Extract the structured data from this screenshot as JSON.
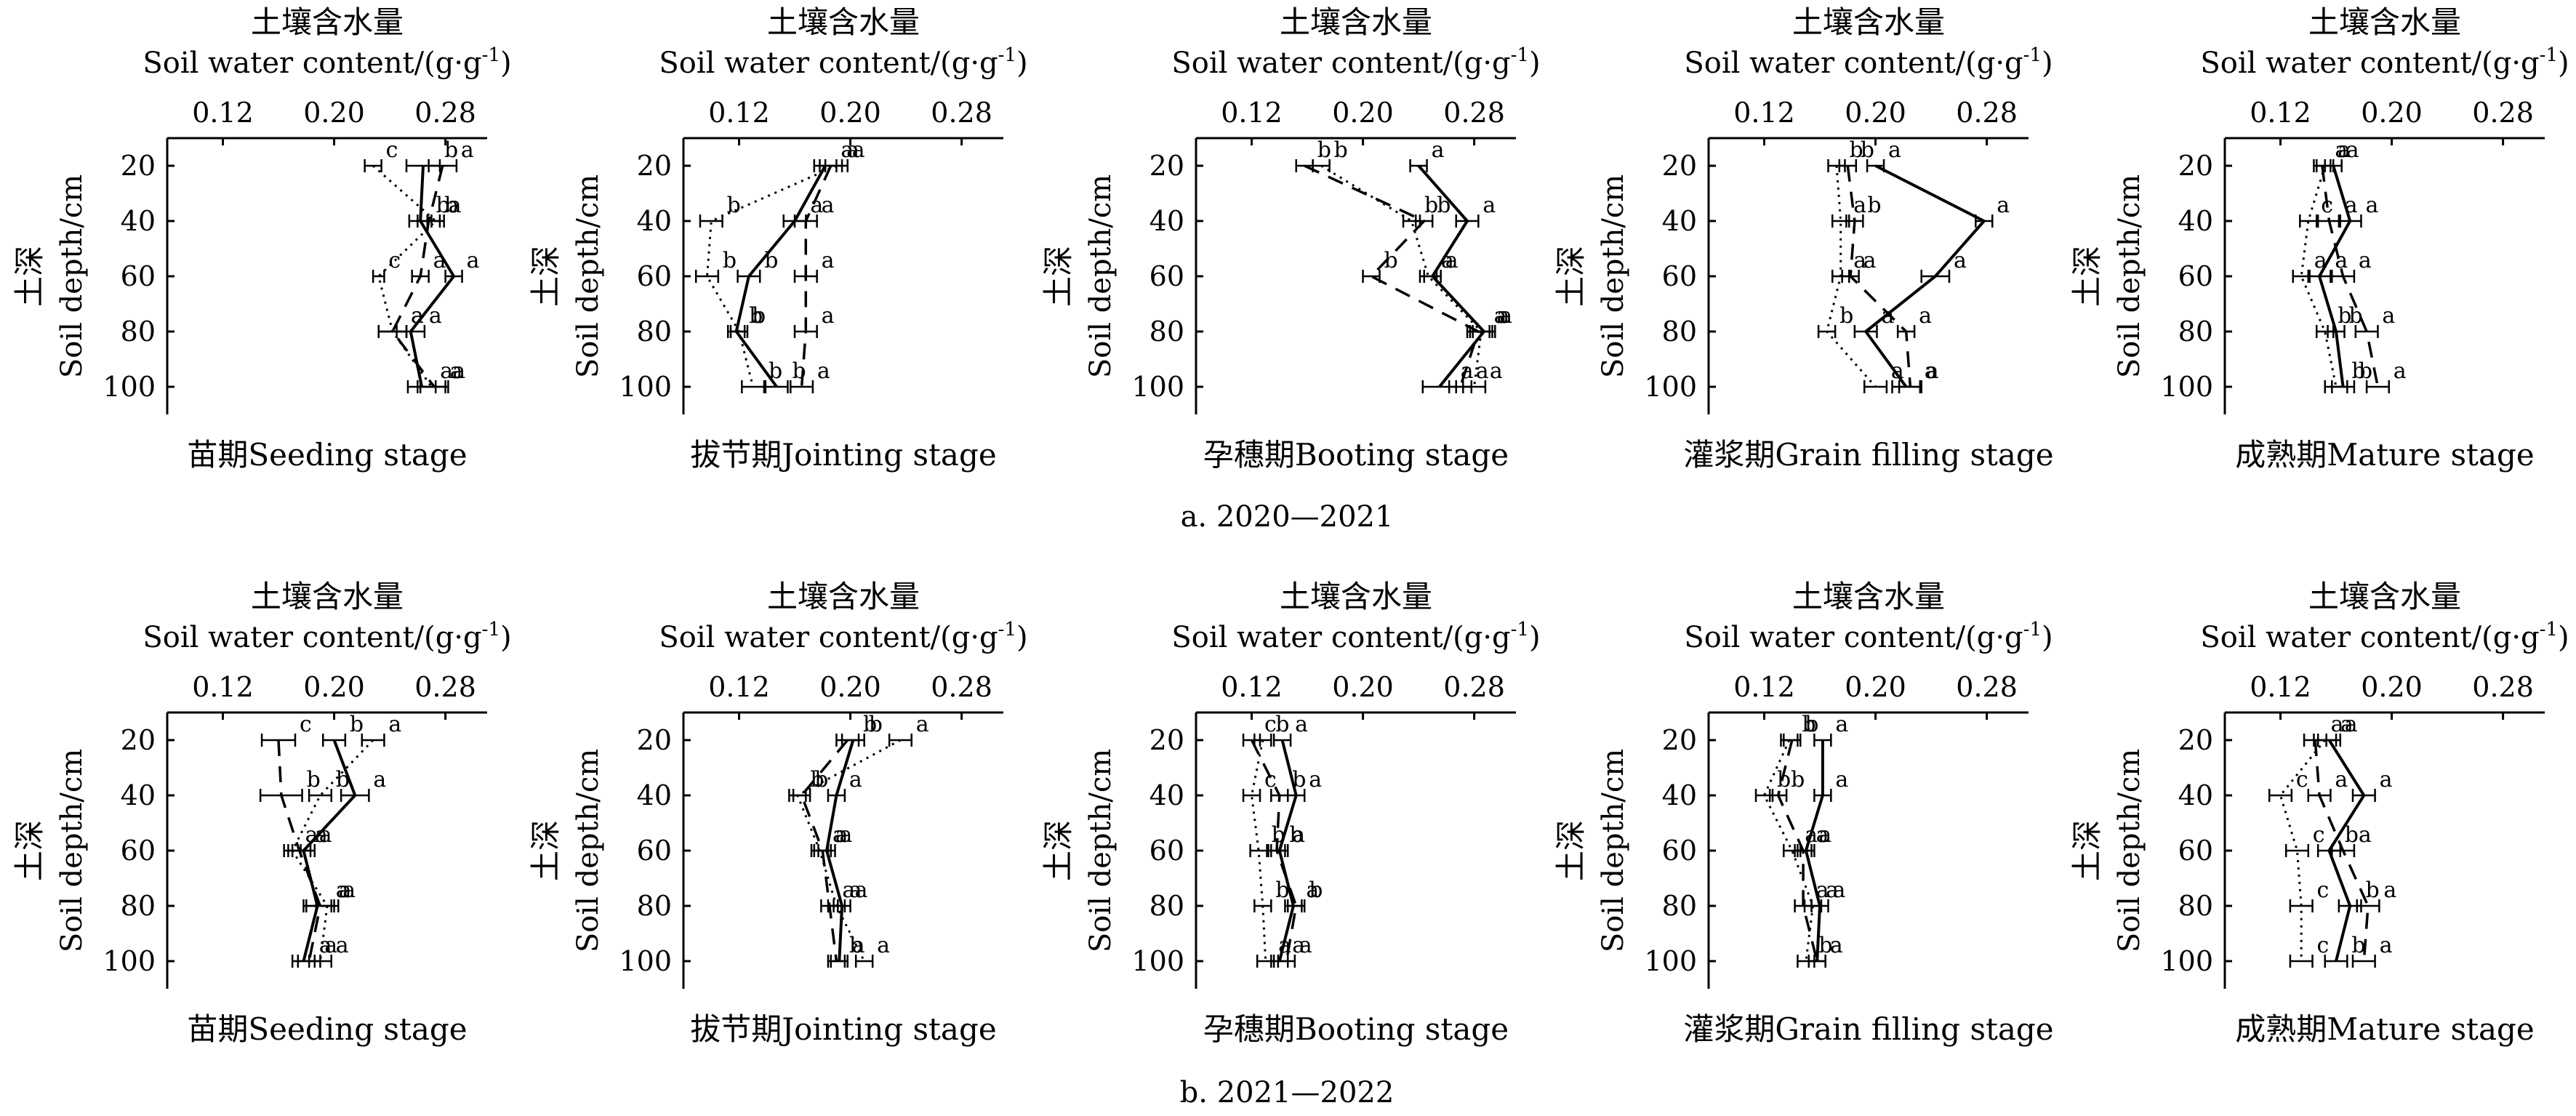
{
  "figure": {
    "caption_a": "a. 2020—2021",
    "caption_b": "b. 2021—2022",
    "x_title_cn": "土壤含水量",
    "x_title_en": "Soil water content/(g·g",
    "x_title_sup": "-1",
    "x_title_close": ")",
    "y_title_cn": "土深",
    "y_title_en": "Soil depth/cm",
    "x_ticks": [
      "0.12",
      "0.20",
      "0.28"
    ],
    "y_ticks": [
      "20",
      "40",
      "60",
      "80",
      "100"
    ],
    "legend": "",
    "series_styles": [
      "solid",
      "dashed",
      "dotted"
    ]
  },
  "chart_data": [
    {
      "type": "line",
      "group": "a",
      "title": "苗期Seeding stage",
      "xlabel": "土壤含水量 Soil water content/(g·g-1)",
      "ylabel": "土深 Soil depth/cm",
      "xlim": [
        0.08,
        0.31
      ],
      "ylim": [
        110,
        10
      ],
      "y": [
        20,
        40,
        60,
        80,
        100
      ],
      "series": [
        {
          "values": [
            0.264,
            0.262,
            0.286,
            0.255,
            0.263
          ],
          "errors": [
            0.012,
            0.008,
            0.006,
            0.01,
            0.01
          ],
          "letters": [
            "b",
            "b",
            "a",
            "a",
            "a"
          ]
        },
        {
          "values": [
            0.278,
            0.268,
            0.262,
            0.242,
            0.272
          ],
          "errors": [
            0.01,
            0.008,
            0.006,
            0.01,
            0.01
          ],
          "letters": [
            "a",
            "b",
            "a",
            "a",
            "a"
          ]
        },
        {
          "values": [
            0.228,
            0.273,
            0.232,
            0.242,
            0.27
          ],
          "errors": [
            0.006,
            0.006,
            0.004,
            0.01,
            0.01
          ],
          "letters": [
            "c",
            "a",
            "c",
            "a",
            "a"
          ]
        }
      ]
    },
    {
      "type": "line",
      "group": "a",
      "title": "拔节期Jointing stage",
      "xlabel": "土壤含水量 Soil water content/(g·g-1)",
      "ylabel": "土深 Soil depth/cm",
      "xlim": [
        0.08,
        0.31
      ],
      "ylim": [
        110,
        10
      ],
      "y": [
        20,
        40,
        60,
        80,
        100
      ],
      "series": [
        {
          "values": [
            0.182,
            0.16,
            0.127,
            0.118,
            0.147
          ],
          "errors": [
            0.008,
            0.008,
            0.008,
            0.006,
            0.008
          ],
          "letters": [
            "a",
            "a",
            "b",
            "b",
            "b"
          ]
        },
        {
          "values": [
            0.186,
            0.168,
            0.168,
            0.168,
            0.165
          ],
          "errors": [
            0.008,
            0.008,
            0.008,
            0.008,
            0.008
          ],
          "letters": [
            "a",
            "a",
            "a",
            "a",
            "a"
          ]
        },
        {
          "values": [
            0.19,
            0.1,
            0.097,
            0.12,
            0.13
          ],
          "errors": [
            0.008,
            0.008,
            0.008,
            0.006,
            0.008
          ],
          "letters": [
            "a",
            "b",
            "b",
            "b",
            "b"
          ]
        }
      ]
    },
    {
      "type": "line",
      "group": "a",
      "title": "孕穗期Booting stage",
      "xlabel": "土壤含水量 Soil water content/(g·g-1)",
      "ylabel": "土深 Soil depth/cm",
      "xlim": [
        0.08,
        0.31
      ],
      "ylim": [
        110,
        10
      ],
      "y": [
        20,
        40,
        60,
        80,
        100
      ],
      "series": [
        {
          "values": [
            0.24,
            0.275,
            0.25,
            0.287,
            0.255
          ],
          "errors": [
            0.006,
            0.008,
            0.006,
            0.008,
            0.012
          ],
          "letters": [
            "a",
            "a",
            "a",
            "a",
            "a"
          ]
        },
        {
          "values": [
            0.158,
            0.244,
            0.206,
            0.283,
            0.27
          ],
          "errors": [
            0.006,
            0.006,
            0.006,
            0.008,
            0.008
          ],
          "letters": [
            "b",
            "b",
            "b",
            "a",
            "a"
          ]
        },
        {
          "values": [
            0.17,
            0.235,
            0.247,
            0.285,
            0.28
          ],
          "errors": [
            0.006,
            0.006,
            0.006,
            0.008,
            0.008
          ],
          "letters": [
            "b",
            "b",
            "a",
            "a",
            "a"
          ]
        }
      ]
    },
    {
      "type": "line",
      "group": "a",
      "title": "灌浆期Grain filling stage",
      "xlabel": "土壤含水量 Soil water content/(g·g-1)",
      "ylabel": "土深 Soil depth/cm",
      "xlim": [
        0.08,
        0.31
      ],
      "ylim": [
        110,
        10
      ],
      "y": [
        20,
        40,
        60,
        80,
        100
      ],
      "series": [
        {
          "values": [
            0.2,
            0.278,
            0.243,
            0.193,
            0.222
          ],
          "errors": [
            0.006,
            0.006,
            0.01,
            0.008,
            0.01
          ],
          "letters": [
            "a",
            "a",
            "a",
            "a",
            "a"
          ]
        },
        {
          "values": [
            0.18,
            0.185,
            0.182,
            0.222,
            0.225
          ],
          "errors": [
            0.006,
            0.006,
            0.006,
            0.006,
            0.008
          ],
          "letters": [
            "b",
            "b",
            "a",
            "a",
            "a"
          ]
        },
        {
          "values": [
            0.172,
            0.175,
            0.175,
            0.165,
            0.2
          ],
          "errors": [
            0.006,
            0.006,
            0.006,
            0.006,
            0.008
          ],
          "letters": [
            "b",
            "a",
            "a",
            "b",
            "a"
          ]
        }
      ]
    },
    {
      "type": "line",
      "group": "a",
      "title": "成熟期Mature stage",
      "xlabel": "土壤含水量 Soil water content/(g·g-1)",
      "ylabel": "土深 Soil depth/cm",
      "xlim": [
        0.08,
        0.31
      ],
      "ylim": [
        110,
        10
      ],
      "y": [
        20,
        40,
        60,
        80,
        100
      ],
      "series": [
        {
          "values": [
            0.158,
            0.17,
            0.148,
            0.16,
            0.165
          ],
          "errors": [
            0.006,
            0.008,
            0.008,
            0.006,
            0.008
          ],
          "letters": [
            "a",
            "a",
            "a",
            "b",
            "b"
          ]
        },
        {
          "values": [
            0.15,
            0.155,
            0.165,
            0.182,
            0.19
          ],
          "errors": [
            0.006,
            0.008,
            0.008,
            0.008,
            0.008
          ],
          "letters": [
            "a",
            "a",
            "a",
            "a",
            "a"
          ]
        },
        {
          "values": [
            0.152,
            0.14,
            0.135,
            0.152,
            0.16
          ],
          "errors": [
            0.006,
            0.006,
            0.006,
            0.006,
            0.008
          ],
          "letters": [
            "a",
            "c",
            "a",
            "b",
            "b"
          ]
        }
      ]
    },
    {
      "type": "line",
      "group": "b",
      "title": "苗期Seeding stage",
      "xlabel": "土壤含水量 Soil water content/(g·g-1)",
      "ylabel": "土深 Soil depth/cm",
      "xlim": [
        0.08,
        0.31
      ],
      "ylim": [
        110,
        10
      ],
      "y": [
        20,
        40,
        60,
        80,
        100
      ],
      "series": [
        {
          "values": [
            0.2,
            0.215,
            0.178,
            0.188,
            0.178
          ],
          "errors": [
            0.008,
            0.01,
            0.008,
            0.01,
            0.008
          ],
          "letters": [
            "b",
            "a",
            "a",
            "a",
            "a"
          ]
        },
        {
          "values": [
            0.16,
            0.162,
            0.175,
            0.19,
            0.182
          ],
          "errors": [
            0.012,
            0.015,
            0.008,
            0.01,
            0.008
          ],
          "letters": [
            "c",
            "b",
            "a",
            "a",
            "a"
          ]
        },
        {
          "values": [
            0.228,
            0.19,
            0.17,
            0.195,
            0.19
          ],
          "errors": [
            0.008,
            0.008,
            0.006,
            0.008,
            0.008
          ],
          "letters": [
            "a",
            "b",
            "a",
            "a",
            "a"
          ]
        }
      ]
    },
    {
      "type": "line",
      "group": "b",
      "title": "拔节期Jointing stage",
      "xlabel": "土壤含水量 Soil water content/(g·g-1)",
      "ylabel": "土深 Soil depth/cm",
      "xlim": [
        0.08,
        0.31
      ],
      "ylim": [
        110,
        10
      ],
      "y": [
        20,
        40,
        60,
        80,
        100
      ],
      "series": [
        {
          "values": [
            0.202,
            0.19,
            0.183,
            0.194,
            0.192
          ],
          "errors": [
            0.008,
            0.006,
            0.006,
            0.006,
            0.006
          ],
          "letters": [
            "b",
            "a",
            "a",
            "a",
            "a"
          ]
        },
        {
          "values": [
            0.198,
            0.165,
            0.18,
            0.185,
            0.19
          ],
          "errors": [
            0.008,
            0.006,
            0.006,
            0.006,
            0.006
          ],
          "letters": [
            "b",
            "b",
            "a",
            "a",
            "b"
          ]
        },
        {
          "values": [
            0.236,
            0.162,
            0.178,
            0.19,
            0.21
          ],
          "errors": [
            0.008,
            0.006,
            0.006,
            0.006,
            0.006
          ],
          "letters": [
            "a",
            "b",
            "a",
            "a",
            "a"
          ]
        }
      ]
    },
    {
      "type": "line",
      "group": "b",
      "title": "孕穗期Booting stage",
      "xlabel": "土壤含水量 Soil water content/(g·g-1)",
      "ylabel": "土深 Soil depth/cm",
      "xlim": [
        0.08,
        0.31
      ],
      "ylim": [
        110,
        10
      ],
      "y": [
        20,
        40,
        60,
        80,
        100
      ],
      "series": [
        {
          "values": [
            0.142,
            0.152,
            0.14,
            0.15,
            0.14
          ],
          "errors": [
            0.006,
            0.006,
            0.006,
            0.006,
            0.006
          ],
          "letters": [
            "a",
            "a",
            "a",
            "a",
            "a"
          ]
        },
        {
          "values": [
            0.12,
            0.14,
            0.138,
            0.152,
            0.145
          ],
          "errors": [
            0.006,
            0.006,
            0.006,
            0.006,
            0.006
          ],
          "letters": [
            "c",
            "b",
            "b",
            "b",
            "a"
          ]
        },
        {
          "values": [
            0.128,
            0.12,
            0.125,
            0.128,
            0.13
          ],
          "errors": [
            0.006,
            0.006,
            0.006,
            0.006,
            0.006
          ],
          "letters": [
            "b",
            "c",
            "b",
            "b",
            "a"
          ]
        }
      ]
    },
    {
      "type": "line",
      "group": "b",
      "title": "灌浆期Grain filling stage",
      "xlabel": "土壤含水量 Soil water content/(g·g-1)",
      "ylabel": "土深 Soil depth/cm",
      "xlim": [
        0.08,
        0.31
      ],
      "ylim": [
        110,
        10
      ],
      "y": [
        20,
        40,
        60,
        80,
        100
      ],
      "series": [
        {
          "values": [
            0.162,
            0.162,
            0.15,
            0.16,
            0.158
          ],
          "errors": [
            0.006,
            0.006,
            0.006,
            0.006,
            0.006
          ],
          "letters": [
            "a",
            "a",
            "a",
            "a",
            "a"
          ]
        },
        {
          "values": [
            0.14,
            0.13,
            0.148,
            0.148,
            0.158
          ],
          "errors": [
            0.006,
            0.006,
            0.006,
            0.006,
            0.006
          ],
          "letters": [
            "b",
            "b",
            "a",
            "a",
            "a"
          ]
        },
        {
          "values": [
            0.138,
            0.12,
            0.14,
            0.155,
            0.15
          ],
          "errors": [
            0.006,
            0.006,
            0.006,
            0.006,
            0.006
          ],
          "letters": [
            "b",
            "b",
            "a",
            "a",
            "b"
          ]
        }
      ]
    },
    {
      "type": "line",
      "group": "b",
      "title": "成熟期Mature stage",
      "xlabel": "土壤含水量 Soil water content/(g·g-1)",
      "ylabel": "土深 Soil depth/cm",
      "xlim": [
        0.08,
        0.31
      ],
      "ylim": [
        110,
        10
      ],
      "y": [
        20,
        40,
        60,
        80,
        100
      ],
      "series": [
        {
          "values": [
            0.155,
            0.18,
            0.155,
            0.17,
            0.16
          ],
          "errors": [
            0.008,
            0.008,
            0.008,
            0.008,
            0.008
          ],
          "letters": [
            "a",
            "a",
            "b",
            "b",
            "b"
          ]
        },
        {
          "values": [
            0.145,
            0.148,
            0.165,
            0.183,
            0.18
          ],
          "errors": [
            0.008,
            0.008,
            0.008,
            0.008,
            0.008
          ],
          "letters": [
            "a",
            "a",
            "a",
            "a",
            "a"
          ]
        },
        {
          "values": [
            0.152,
            0.12,
            0.132,
            0.135,
            0.135
          ],
          "errors": [
            0.008,
            0.008,
            0.008,
            0.008,
            0.008
          ],
          "letters": [
            "a",
            "c",
            "c",
            "c",
            "c"
          ]
        }
      ]
    }
  ]
}
